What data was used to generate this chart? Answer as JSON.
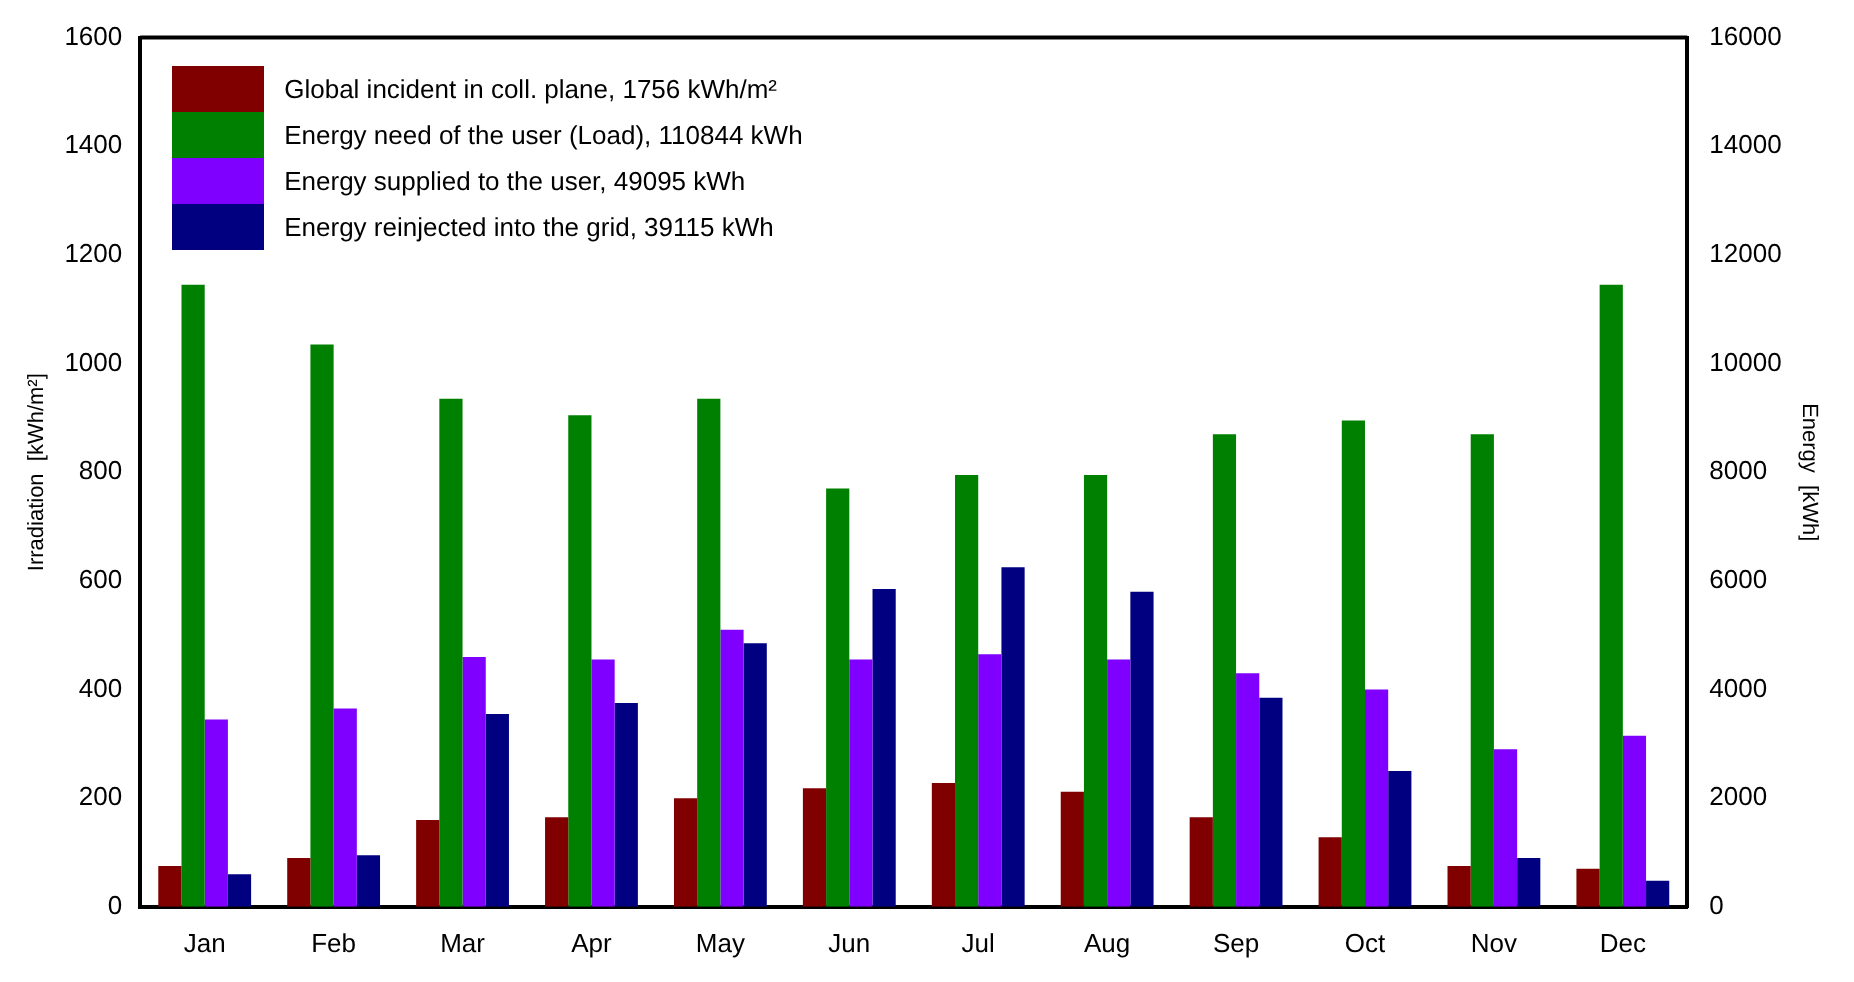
{
  "chart_data": {
    "type": "bar",
    "ylabel": "Irradiation  [kWh/m²]",
    "y2label": "Energy  [kWh]",
    "categories": [
      "Jan",
      "Feb",
      "Mar",
      "Apr",
      "May",
      "Jun",
      "Jul",
      "Aug",
      "Sep",
      "Oct",
      "Nov",
      "Dec"
    ],
    "series": [
      {
        "name": "Global incident in coll. plane,  1756 kWh/m²",
        "color": "#800000",
        "values": [
          75,
          90,
          160,
          165,
          200,
          218,
          228,
          212,
          165,
          128,
          75,
          70
        ]
      },
      {
        "name": "Energy need of the user (Load),  110844 kWh",
        "color": "#008000",
        "axis": "y2",
        "values": [
          11450,
          10350,
          9350,
          9050,
          9350,
          7700,
          7950,
          7950,
          8700,
          8950,
          8700,
          11450
        ]
      },
      {
        "name": "Energy supplied to the user,  49095 kWh",
        "color": "#8000ff",
        "axis": "y2",
        "values": [
          3450,
          3650,
          4600,
          4550,
          5100,
          4550,
          4650,
          4550,
          4300,
          4000,
          2900,
          3150
        ]
      },
      {
        "name": "Energy reinjected into the grid,  39115 kWh",
        "color": "#000080",
        "axis": "y2",
        "values": [
          600,
          950,
          3550,
          3750,
          4850,
          5850,
          6250,
          5800,
          3850,
          2500,
          900,
          480
        ]
      }
    ],
    "ylim": [
      0,
      1600
    ],
    "yticks": [
      0,
      200,
      400,
      600,
      800,
      1000,
      1200,
      1400,
      1600
    ],
    "y2lim": [
      0,
      16000
    ],
    "y2ticks": [
      0,
      2000,
      4000,
      6000,
      8000,
      10000,
      12000,
      14000,
      16000
    ],
    "grid": false,
    "legend": "top left"
  }
}
